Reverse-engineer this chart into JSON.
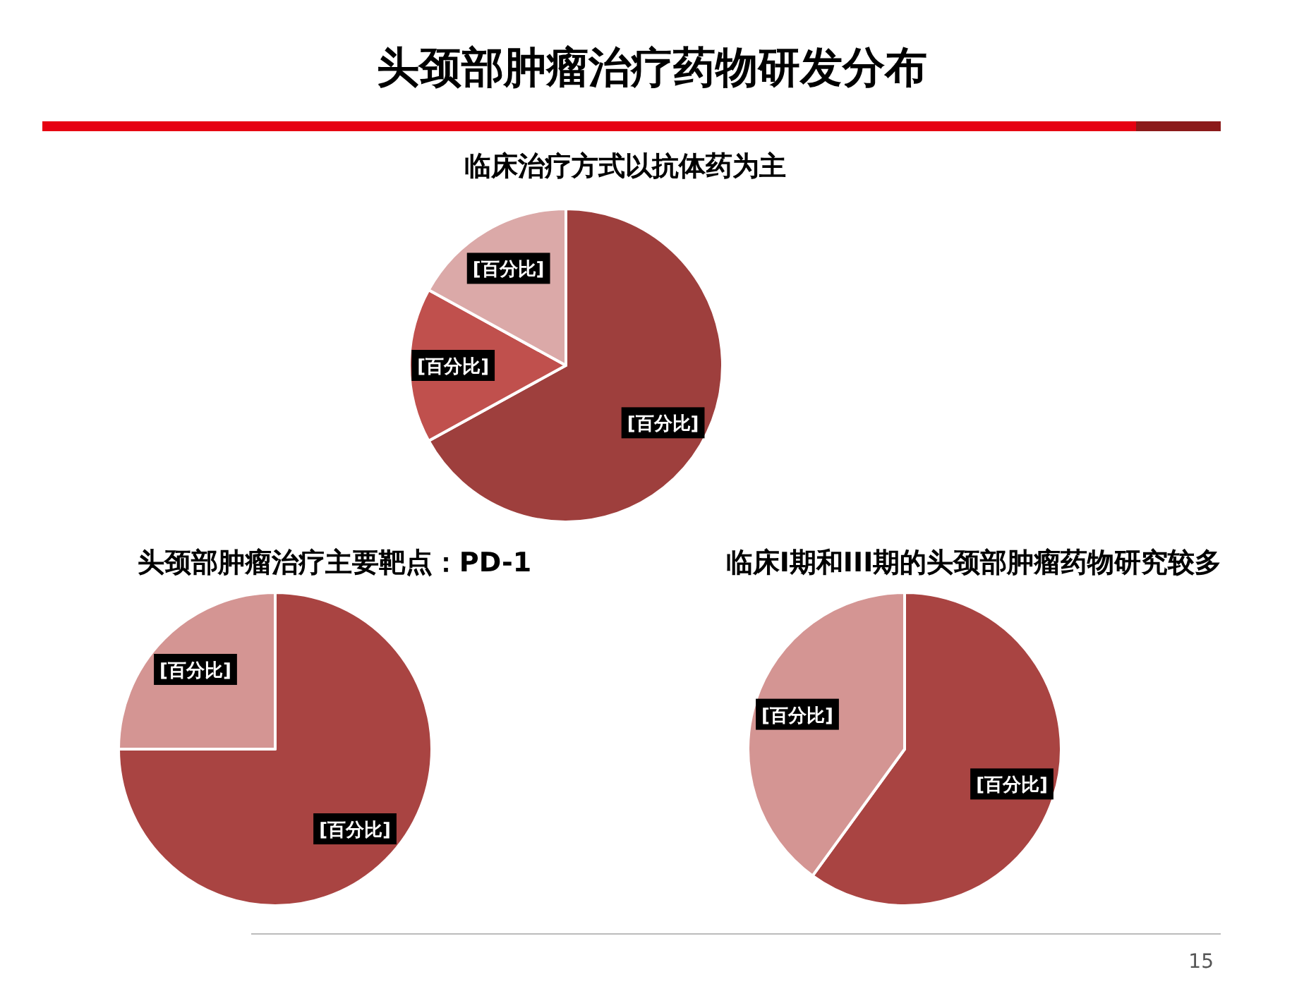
{
  "chart_data": [
    {
      "type": "other",
      "title": "头颈部肿瘤治疗药物研发分布",
      "annotations": [
        "15"
      ]
    },
    {
      "type": "pie",
      "title": "临床治疗方式以抗体药为主",
      "categories": [
        null,
        null,
        null
      ],
      "values": [
        67,
        16,
        17
      ],
      "colors": [
        "#9e3f3d",
        "#c0504d",
        "#dba9a8"
      ],
      "value_labels": [
        "[百分比]",
        "[百分比]",
        "[百分比]"
      ]
    },
    {
      "type": "pie",
      "title": "头颈部肿瘤治疗主要靶点：PD-1",
      "categories": [
        null,
        null
      ],
      "values": [
        75,
        25
      ],
      "colors": [
        "#a94442",
        "#d49593"
      ],
      "value_labels": [
        "[百分比]",
        "[百分比]"
      ]
    },
    {
      "type": "pie",
      "title": "临床I期和III期的头颈部肿瘤药物研究较多",
      "categories": [
        null,
        null
      ],
      "values": [
        60,
        40
      ],
      "colors": [
        "#a94442",
        "#d49593"
      ],
      "value_labels": [
        "[百分比]",
        "[百分比]"
      ]
    }
  ]
}
